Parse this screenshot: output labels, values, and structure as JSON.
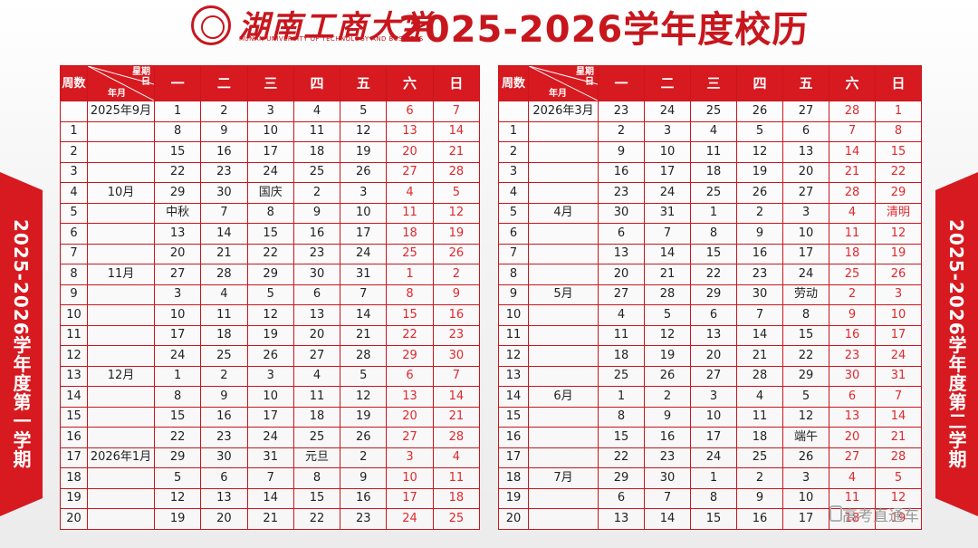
{
  "header": {
    "logo_cn": "湖南工商大学",
    "logo_en": "HUNAN UNIVERSITY OF TECHNOLOGY AND BUSINESS",
    "title": "2025-2026学年度校历"
  },
  "side_left": "2025-2026学年度第一学期",
  "side_right": "2025-2026学年度第二学期",
  "table_header": {
    "week": "周数",
    "weekday": "星期",
    "day": "日",
    "yearmonth": "年月",
    "days": [
      "一",
      "二",
      "三",
      "四",
      "五",
      "六",
      "日"
    ]
  },
  "colors": {
    "accent": "#d71920",
    "weekend": "#e0282e"
  },
  "sem1": [
    {
      "w": "",
      "m": "2025年9月",
      "d": [
        "1",
        "2",
        "3",
        "4",
        "5",
        "6",
        "7"
      ]
    },
    {
      "w": "1",
      "m": "",
      "d": [
        "8",
        "9",
        "10",
        "11",
        "12",
        "13",
        "14"
      ]
    },
    {
      "w": "2",
      "m": "",
      "d": [
        "15",
        "16",
        "17",
        "18",
        "19",
        "20",
        "21"
      ]
    },
    {
      "w": "3",
      "m": "",
      "d": [
        "22",
        "23",
        "24",
        "25",
        "26",
        "27",
        "28"
      ]
    },
    {
      "w": "4",
      "m": "10月",
      "d": [
        "29",
        "30",
        "国庆",
        "2",
        "3",
        "4",
        "5"
      ]
    },
    {
      "w": "5",
      "m": "",
      "d": [
        "中秋",
        "7",
        "8",
        "9",
        "10",
        "11",
        "12"
      ]
    },
    {
      "w": "6",
      "m": "",
      "d": [
        "13",
        "14",
        "15",
        "16",
        "17",
        "18",
        "19"
      ]
    },
    {
      "w": "7",
      "m": "",
      "d": [
        "20",
        "21",
        "22",
        "23",
        "24",
        "25",
        "26"
      ]
    },
    {
      "w": "8",
      "m": "11月",
      "d": [
        "27",
        "28",
        "29",
        "30",
        "31",
        "1",
        "2"
      ]
    },
    {
      "w": "9",
      "m": "",
      "d": [
        "3",
        "4",
        "5",
        "6",
        "7",
        "8",
        "9"
      ]
    },
    {
      "w": "10",
      "m": "",
      "d": [
        "10",
        "11",
        "12",
        "13",
        "14",
        "15",
        "16"
      ]
    },
    {
      "w": "11",
      "m": "",
      "d": [
        "17",
        "18",
        "19",
        "20",
        "21",
        "22",
        "23"
      ]
    },
    {
      "w": "12",
      "m": "",
      "d": [
        "24",
        "25",
        "26",
        "27",
        "28",
        "29",
        "30"
      ]
    },
    {
      "w": "13",
      "m": "12月",
      "d": [
        "1",
        "2",
        "3",
        "4",
        "5",
        "6",
        "7"
      ]
    },
    {
      "w": "14",
      "m": "",
      "d": [
        "8",
        "9",
        "10",
        "11",
        "12",
        "13",
        "14"
      ]
    },
    {
      "w": "15",
      "m": "",
      "d": [
        "15",
        "16",
        "17",
        "18",
        "19",
        "20",
        "21"
      ]
    },
    {
      "w": "16",
      "m": "",
      "d": [
        "22",
        "23",
        "24",
        "25",
        "26",
        "27",
        "28"
      ]
    },
    {
      "w": "17",
      "m": "2026年1月",
      "d": [
        "29",
        "30",
        "31",
        "元旦",
        "2",
        "3",
        "4"
      ]
    },
    {
      "w": "18",
      "m": "",
      "d": [
        "5",
        "6",
        "7",
        "8",
        "9",
        "10",
        "11"
      ]
    },
    {
      "w": "19",
      "m": "",
      "d": [
        "12",
        "13",
        "14",
        "15",
        "16",
        "17",
        "18"
      ]
    },
    {
      "w": "20",
      "m": "",
      "d": [
        "19",
        "20",
        "21",
        "22",
        "23",
        "24",
        "25"
      ]
    }
  ],
  "sem2": [
    {
      "w": "",
      "m": "2026年3月",
      "d": [
        "23",
        "24",
        "25",
        "26",
        "27",
        "28",
        "1"
      ]
    },
    {
      "w": "1",
      "m": "",
      "d": [
        "2",
        "3",
        "4",
        "5",
        "6",
        "7",
        "8"
      ]
    },
    {
      "w": "2",
      "m": "",
      "d": [
        "9",
        "10",
        "11",
        "12",
        "13",
        "14",
        "15"
      ]
    },
    {
      "w": "3",
      "m": "",
      "d": [
        "16",
        "17",
        "18",
        "19",
        "20",
        "21",
        "22"
      ]
    },
    {
      "w": "4",
      "m": "",
      "d": [
        "23",
        "24",
        "25",
        "26",
        "27",
        "28",
        "29"
      ]
    },
    {
      "w": "5",
      "m": "4月",
      "d": [
        "30",
        "31",
        "1",
        "2",
        "3",
        "4",
        "清明"
      ]
    },
    {
      "w": "6",
      "m": "",
      "d": [
        "6",
        "7",
        "8",
        "9",
        "10",
        "11",
        "12"
      ]
    },
    {
      "w": "7",
      "m": "",
      "d": [
        "13",
        "14",
        "15",
        "16",
        "17",
        "18",
        "19"
      ]
    },
    {
      "w": "8",
      "m": "",
      "d": [
        "20",
        "21",
        "22",
        "23",
        "24",
        "25",
        "26"
      ]
    },
    {
      "w": "9",
      "m": "5月",
      "d": [
        "27",
        "28",
        "29",
        "30",
        "劳动",
        "2",
        "3"
      ]
    },
    {
      "w": "10",
      "m": "",
      "d": [
        "4",
        "5",
        "6",
        "7",
        "8",
        "9",
        "10"
      ]
    },
    {
      "w": "11",
      "m": "",
      "d": [
        "11",
        "12",
        "13",
        "14",
        "15",
        "16",
        "17"
      ]
    },
    {
      "w": "12",
      "m": "",
      "d": [
        "18",
        "19",
        "20",
        "21",
        "22",
        "23",
        "24"
      ]
    },
    {
      "w": "13",
      "m": "",
      "d": [
        "25",
        "26",
        "27",
        "28",
        "29",
        "30",
        "31"
      ]
    },
    {
      "w": "14",
      "m": "6月",
      "d": [
        "1",
        "2",
        "3",
        "4",
        "5",
        "6",
        "7"
      ]
    },
    {
      "w": "15",
      "m": "",
      "d": [
        "8",
        "9",
        "10",
        "11",
        "12",
        "13",
        "14"
      ]
    },
    {
      "w": "16",
      "m": "",
      "d": [
        "15",
        "16",
        "17",
        "18",
        "端午",
        "20",
        "21"
      ]
    },
    {
      "w": "17",
      "m": "",
      "d": [
        "22",
        "23",
        "24",
        "25",
        "26",
        "27",
        "28"
      ]
    },
    {
      "w": "18",
      "m": "7月",
      "d": [
        "29",
        "30",
        "1",
        "2",
        "3",
        "4",
        "5"
      ]
    },
    {
      "w": "19",
      "m": "",
      "d": [
        "6",
        "7",
        "8",
        "9",
        "10",
        "11",
        "12"
      ]
    },
    {
      "w": "20",
      "m": "",
      "d": [
        "13",
        "14",
        "15",
        "16",
        "17",
        "18",
        "19"
      ]
    }
  ],
  "watermark": "高考直通车"
}
